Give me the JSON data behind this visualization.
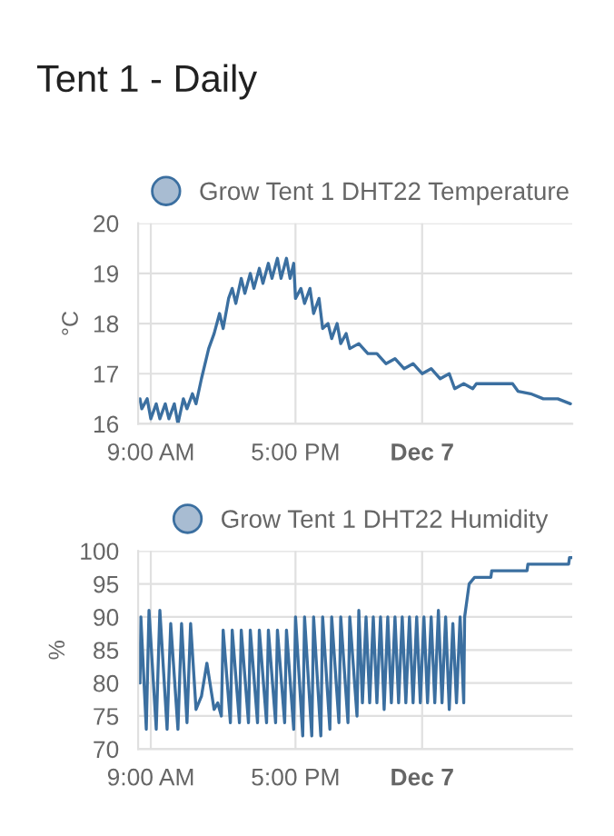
{
  "chart_data": [
    {
      "type": "line",
      "title": "Tent 1 - Daily",
      "ylabel": "°C",
      "legend": "top",
      "grid": true,
      "marker": "none",
      "line_style": "solid",
      "xlim": [
        8.3,
        32.3
      ],
      "xticks": [
        {
          "value": 9,
          "label": "9:00 AM"
        },
        {
          "value": 17,
          "label": "5:00 PM"
        },
        {
          "value": 24,
          "label": "Dec 7"
        }
      ],
      "ylim": [
        16,
        20
      ],
      "yticks": [
        16,
        17,
        18,
        19,
        20
      ],
      "series": [
        {
          "name": "Grow Tent 1 DHT22 Temperature",
          "color": "#3b6fa0",
          "x": [
            8.4,
            8.5,
            8.8,
            9.0,
            9.3,
            9.5,
            9.8,
            10.0,
            10.3,
            10.5,
            10.8,
            11.0,
            11.3,
            11.5,
            11.8,
            12.2,
            12.5,
            12.8,
            13.0,
            13.3,
            13.5,
            13.7,
            14.0,
            14.2,
            14.5,
            14.7,
            15.0,
            15.2,
            15.5,
            15.7,
            16.0,
            16.2,
            16.5,
            16.7,
            16.9,
            17.0,
            17.3,
            17.5,
            17.8,
            18.0,
            18.3,
            18.5,
            18.8,
            19.0,
            19.3,
            19.5,
            19.8,
            20.0,
            20.5,
            21.0,
            21.5,
            22.0,
            22.5,
            23.0,
            23.5,
            24.0,
            24.5,
            25.0,
            25.5,
            25.8,
            26.3,
            26.8,
            27.0,
            28.5,
            29.0,
            29.3,
            30.0,
            30.7,
            31.5,
            32.2
          ],
          "values": [
            16.5,
            16.3,
            16.5,
            16.1,
            16.4,
            16.1,
            16.4,
            16.1,
            16.4,
            16.0,
            16.5,
            16.3,
            16.6,
            16.4,
            16.9,
            17.5,
            17.8,
            18.2,
            17.9,
            18.5,
            18.7,
            18.4,
            18.9,
            18.6,
            19.0,
            18.7,
            19.1,
            18.8,
            19.2,
            18.9,
            19.3,
            18.9,
            19.3,
            18.9,
            19.2,
            18.5,
            18.7,
            18.4,
            18.7,
            18.2,
            18.5,
            17.9,
            18.0,
            17.7,
            18.0,
            17.6,
            17.8,
            17.5,
            17.6,
            17.4,
            17.4,
            17.2,
            17.3,
            17.1,
            17.2,
            17.0,
            17.1,
            16.9,
            17.0,
            16.7,
            16.8,
            16.7,
            16.8,
            16.8,
            16.8,
            16.65,
            16.6,
            16.5,
            16.5,
            16.4
          ]
        }
      ]
    },
    {
      "type": "line",
      "ylabel": "%",
      "legend": "top",
      "grid": true,
      "marker": "none",
      "line_style": "solid",
      "xlim": [
        8.3,
        32.3
      ],
      "xticks": [
        {
          "value": 9,
          "label": "9:00 AM"
        },
        {
          "value": 17,
          "label": "5:00 PM"
        },
        {
          "value": 24,
          "label": "Dec 7"
        }
      ],
      "ylim": [
        70,
        100
      ],
      "yticks": [
        70,
        75,
        80,
        85,
        90,
        95,
        100
      ],
      "series": [
        {
          "name": "Grow Tent 1 DHT22 Humidity",
          "color": "#3b6fa0",
          "x": [
            8.4,
            8.45,
            8.75,
            8.9,
            9.3,
            9.5,
            9.9,
            10.1,
            10.5,
            10.7,
            11.0,
            11.2,
            11.5,
            11.8,
            12.1,
            12.5,
            12.7,
            12.9,
            13.0,
            13.4,
            13.5,
            13.9,
            14.0,
            14.4,
            14.5,
            14.9,
            15.0,
            15.4,
            15.5,
            15.9,
            16.0,
            16.4,
            16.5,
            16.9,
            17.0,
            17.4,
            17.5,
            17.9,
            18.0,
            18.4,
            18.5,
            18.9,
            19.0,
            19.4,
            19.5,
            19.9,
            20.0,
            20.4,
            20.5,
            20.7,
            20.9,
            21.1,
            21.3,
            21.5,
            21.7,
            21.9,
            22.1,
            22.3,
            22.5,
            22.7,
            22.9,
            23.1,
            23.3,
            23.5,
            23.7,
            23.9,
            24.1,
            24.3,
            24.5,
            24.7,
            24.9,
            25.1,
            25.3,
            25.5,
            25.7,
            25.9,
            26.1,
            26.3,
            26.35,
            26.6,
            26.9,
            27.8,
            27.85,
            29.8,
            29.85,
            32.1,
            32.15,
            32.3
          ],
          "values": [
            80,
            90,
            73,
            91,
            73,
            91,
            73,
            89,
            73,
            89,
            74,
            89,
            76,
            78,
            83,
            76,
            77,
            75,
            88,
            74,
            88,
            74,
            88,
            74,
            88,
            74,
            88,
            74,
            88,
            74,
            88,
            74,
            88,
            73,
            90,
            72,
            90,
            72,
            90,
            72,
            90,
            73,
            90,
            74,
            90,
            74,
            90,
            75,
            91,
            77,
            90,
            77,
            90,
            77,
            90,
            76,
            90,
            77,
            90,
            77,
            90,
            77,
            90,
            77,
            90,
            77,
            90,
            77,
            90,
            77,
            91,
            77,
            90,
            76,
            89,
            77,
            90,
            77,
            90,
            95,
            96,
            96,
            97,
            97,
            98,
            98,
            99,
            99
          ]
        }
      ]
    }
  ]
}
